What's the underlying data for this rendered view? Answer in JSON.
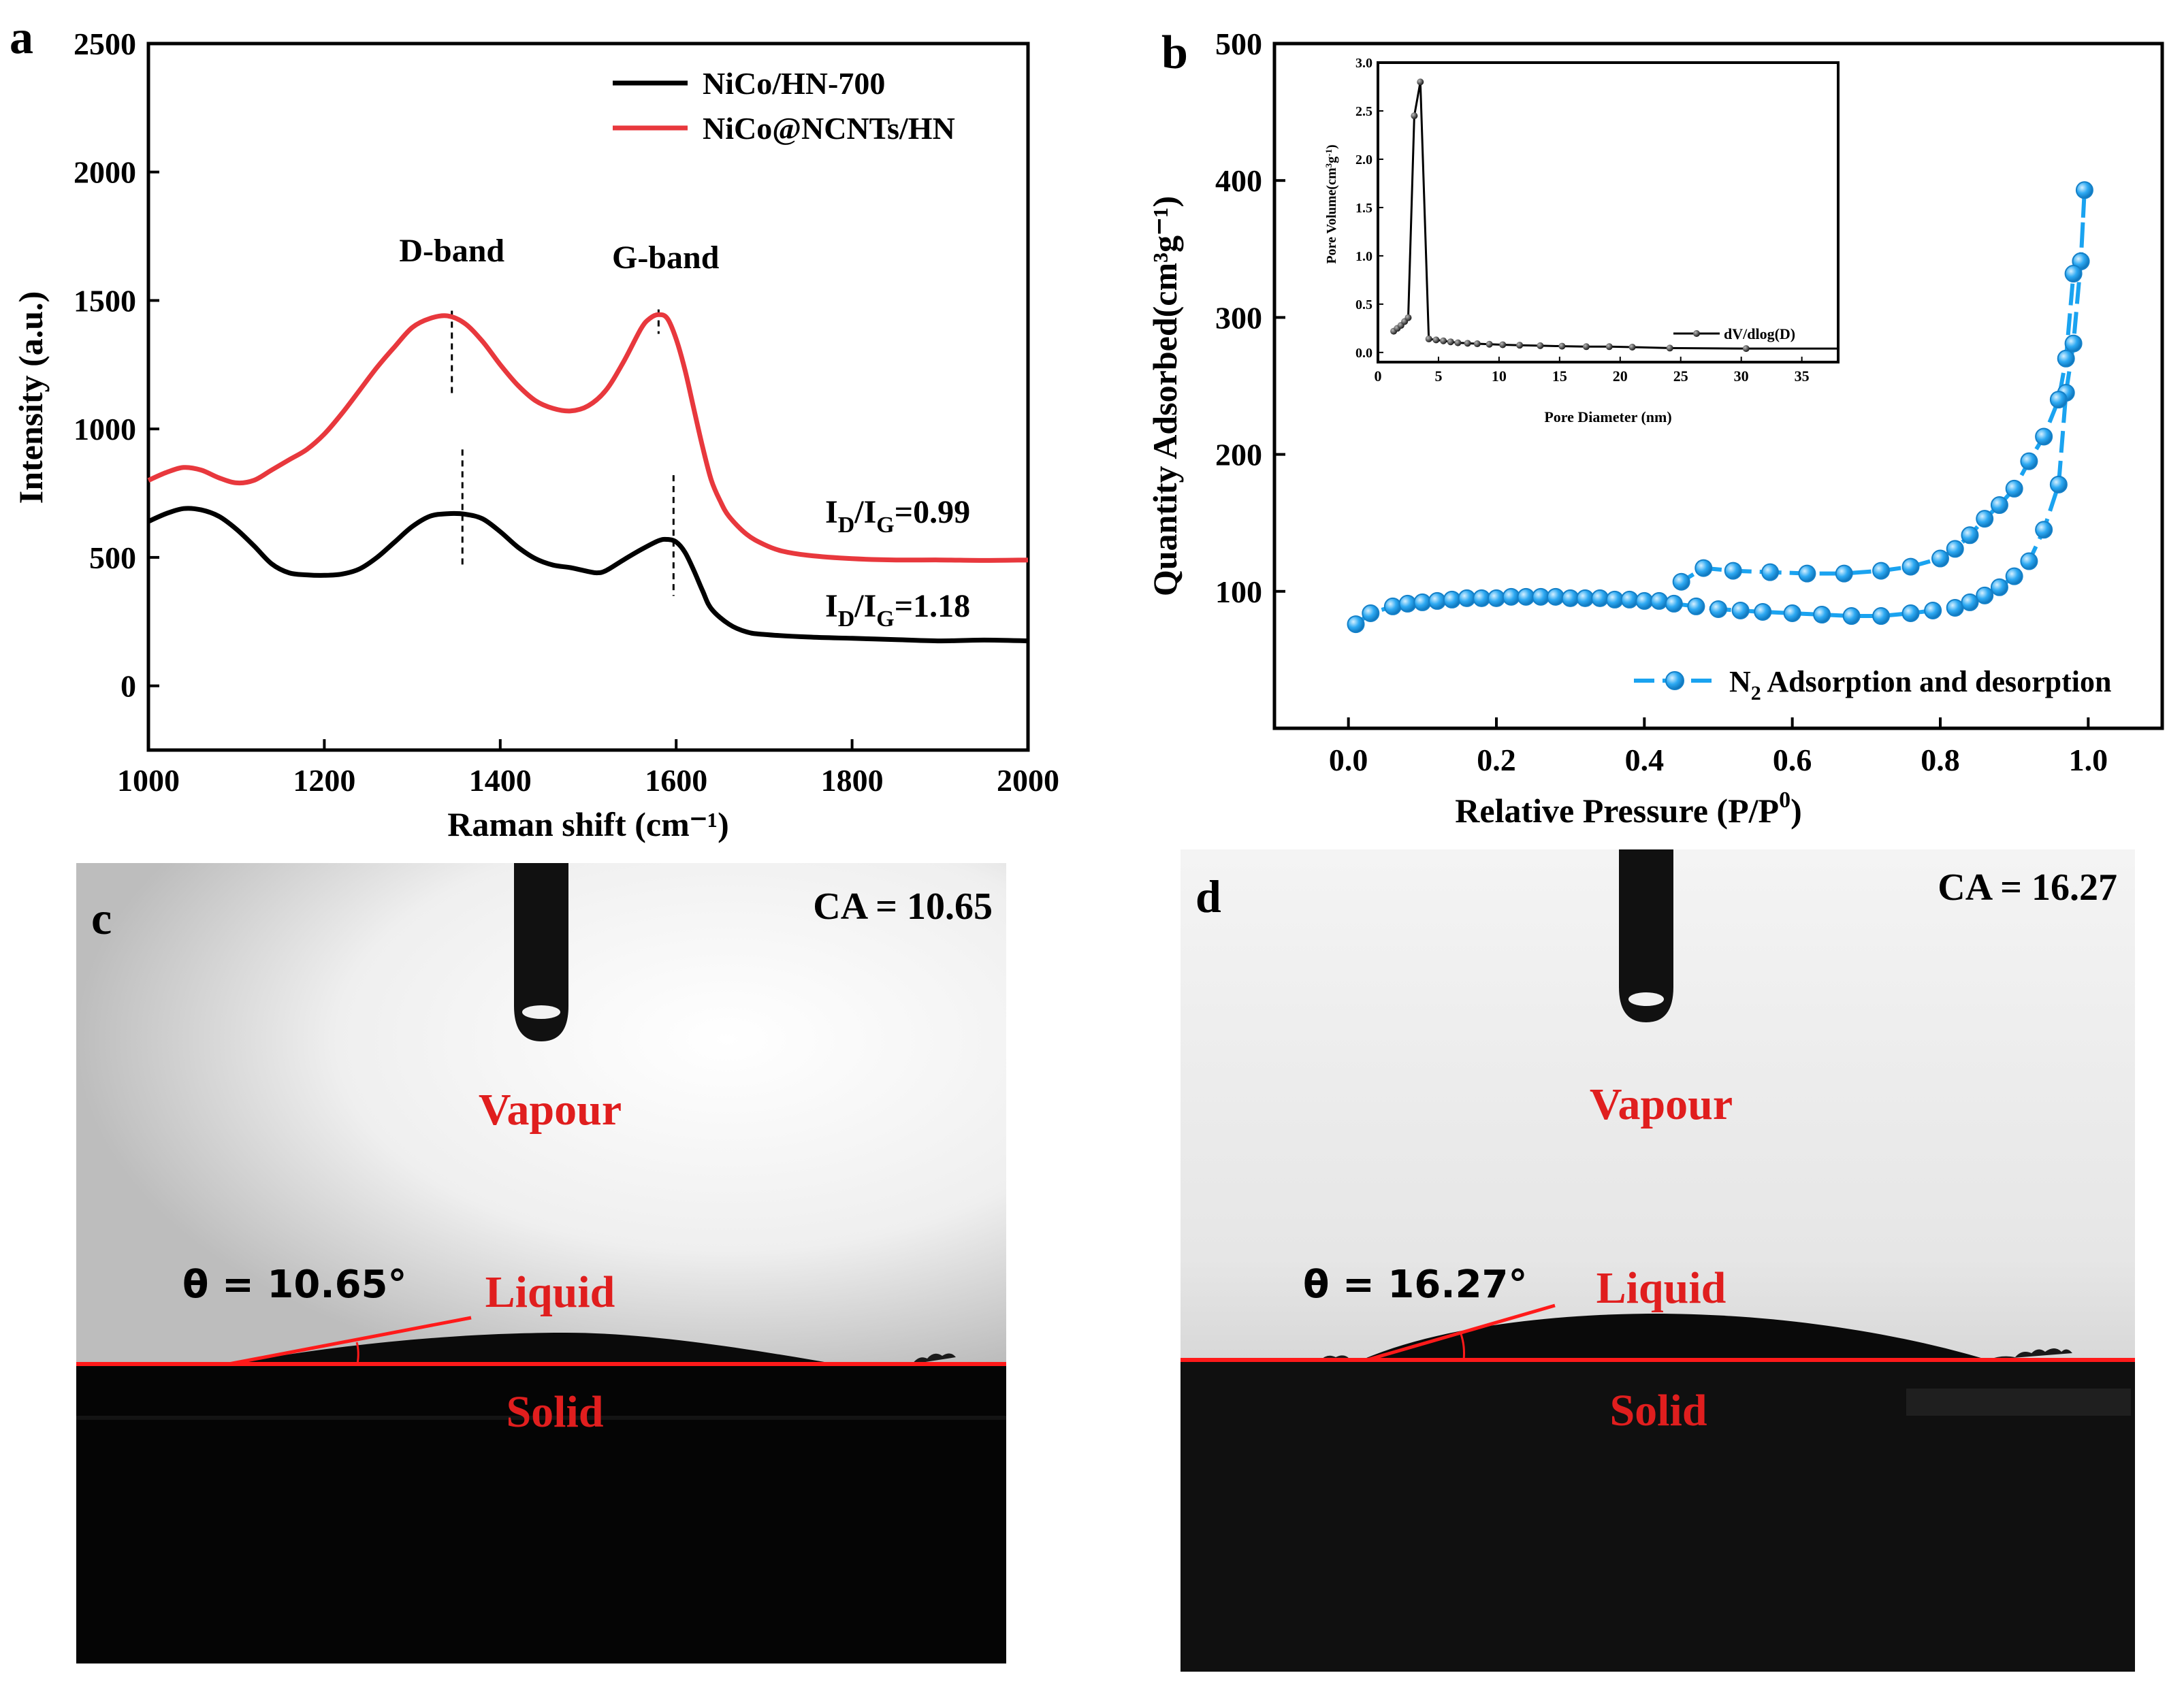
{
  "panels": {
    "a": {
      "label": "a"
    },
    "b": {
      "label": "b"
    },
    "c": {
      "label": "c",
      "ca_text": "CA = 10.65",
      "theta_text": "θ = 10.65°",
      "vapour": "Vapour",
      "liquid": "Liquid",
      "solid": "Solid"
    },
    "d": {
      "label": "d",
      "ca_text": "CA = 16.27",
      "theta_text": "θ = 16.27°",
      "vapour": "Vapour",
      "liquid": "Liquid",
      "solid": "Solid"
    }
  },
  "colors": {
    "black": "#000000",
    "red": "#e8383d",
    "blue": "#1aa3f0",
    "label_red": "#e01e1e"
  },
  "chart_data": [
    {
      "id": "raman",
      "type": "line",
      "xlabel": "Raman shift (cm⁻¹)",
      "ylabel": "Intensity (a.u.)",
      "xlim": [
        1000,
        2000
      ],
      "ylim": [
        -250,
        2500
      ],
      "xticks": [
        1000,
        1200,
        1400,
        1600,
        1800,
        2000
      ],
      "yticks": [
        0,
        500,
        1000,
        1500,
        2000,
        2500
      ],
      "legend_position": "top-right",
      "annotations": [
        {
          "text": "D-band",
          "x": 1345
        },
        {
          "text": "G-band",
          "x": 1580
        }
      ],
      "ratio_labels": [
        {
          "sub": "D",
          "sub2": "G",
          "value": "=0.99",
          "series": "NiCo@NCNTs/HN"
        },
        {
          "sub": "D",
          "sub2": "G",
          "value": "=1.18",
          "series": "NiCo/HN-700"
        }
      ],
      "band_markers": [
        {
          "x": 1345,
          "from": 1130,
          "to": 1460,
          "series": "NiCo@NCNTs/HN"
        },
        {
          "x": 1580,
          "from": 1370,
          "to": 1465,
          "series": "NiCo@NCNTs/HN"
        },
        {
          "x": 1357,
          "from": 460,
          "to": 920,
          "series": "NiCo/HN-700"
        },
        {
          "x": 1597,
          "from": 350,
          "to": 820,
          "series": "NiCo/HN-700"
        }
      ],
      "series": [
        {
          "name": "NiCo/HN-700",
          "color": "#000000",
          "x": [
            1000,
            1020,
            1040,
            1060,
            1080,
            1100,
            1120,
            1140,
            1160,
            1180,
            1200,
            1220,
            1240,
            1260,
            1280,
            1300,
            1320,
            1340,
            1360,
            1380,
            1400,
            1420,
            1440,
            1460,
            1480,
            1500,
            1510,
            1520,
            1540,
            1560,
            1580,
            1590,
            1600,
            1610,
            1620,
            1630,
            1640,
            1660,
            1680,
            1700,
            1750,
            1800,
            1850,
            1900,
            1950,
            2000
          ],
          "y": [
            640,
            670,
            690,
            685,
            660,
            610,
            545,
            475,
            440,
            432,
            430,
            435,
            455,
            500,
            560,
            620,
            660,
            670,
            668,
            650,
            600,
            540,
            495,
            470,
            460,
            445,
            440,
            448,
            490,
            530,
            565,
            570,
            560,
            520,
            450,
            370,
            300,
            240,
            210,
            200,
            190,
            185,
            180,
            175,
            178,
            175
          ]
        },
        {
          "name": "NiCo@NCNTs/HN",
          "color": "#e8383d",
          "x": [
            1000,
            1020,
            1040,
            1060,
            1080,
            1100,
            1120,
            1140,
            1160,
            1180,
            1200,
            1220,
            1240,
            1260,
            1280,
            1300,
            1320,
            1340,
            1360,
            1380,
            1400,
            1420,
            1440,
            1460,
            1480,
            1500,
            1520,
            1540,
            1560,
            1570,
            1580,
            1590,
            1600,
            1610,
            1620,
            1630,
            1640,
            1650,
            1660,
            1680,
            1700,
            1720,
            1750,
            1800,
            1850,
            1900,
            1950,
            2000
          ],
          "y": [
            800,
            830,
            850,
            840,
            810,
            790,
            800,
            840,
            880,
            920,
            980,
            1060,
            1150,
            1240,
            1320,
            1395,
            1430,
            1440,
            1410,
            1340,
            1250,
            1170,
            1110,
            1080,
            1070,
            1090,
            1150,
            1260,
            1390,
            1430,
            1445,
            1430,
            1350,
            1230,
            1080,
            930,
            800,
            720,
            660,
            590,
            550,
            525,
            508,
            495,
            490,
            490,
            488,
            490
          ]
        }
      ]
    },
    {
      "id": "bet",
      "type": "line",
      "xlabel": "Relative Pressure (P/P0)",
      "xlabel_main": "Relative Pressure (P/P",
      "xlabel_sup": "0",
      "xlabel_end": ")",
      "ylabel": "Quantity Adsorbed(cm³g⁻¹)",
      "xlim": [
        -0.1,
        1.1
      ],
      "ylim": [
        0,
        500
      ],
      "xticks": [
        0.0,
        0.2,
        0.4,
        0.6,
        0.8,
        1.0
      ],
      "yticks": [
        100,
        200,
        300,
        400,
        500
      ],
      "legend_position": "bottom-right",
      "series": [
        {
          "name": "N2 Adsorption and desorption",
          "legend_main": "N",
          "legend_sub": "2",
          "legend_rest": " Adsorption and desorption",
          "color": "#1aa3f0",
          "x": [
            0.01,
            0.03,
            0.06,
            0.08,
            0.1,
            0.12,
            0.14,
            0.16,
            0.18,
            0.2,
            0.22,
            0.24,
            0.26,
            0.28,
            0.3,
            0.32,
            0.34,
            0.36,
            0.38,
            0.4,
            0.42,
            0.44,
            0.47,
            0.5,
            0.53,
            0.56,
            0.6,
            0.64,
            0.68,
            0.72,
            0.76,
            0.79,
            0.82,
            0.84,
            0.86,
            0.88,
            0.9,
            0.92,
            0.94,
            0.96,
            0.97,
            0.98,
            0.99,
            0.995,
            0.99,
            0.98,
            0.97,
            0.96,
            0.94,
            0.92,
            0.9,
            0.88,
            0.86,
            0.84,
            0.82,
            0.8,
            0.76,
            0.72,
            0.67,
            0.62,
            0.57,
            0.52,
            0.48,
            0.45
          ],
          "y": [
            76,
            84,
            89,
            91,
            92,
            93,
            94,
            95,
            95,
            95,
            96,
            96,
            96,
            96,
            95,
            95,
            95,
            94,
            94,
            93,
            93,
            91,
            89,
            87,
            86,
            85,
            84,
            83,
            82,
            82,
            84,
            86,
            88,
            92,
            97,
            103,
            111,
            122,
            145,
            178,
            245,
            281,
            341,
            393,
            341,
            332,
            270,
            240,
            213,
            195,
            175,
            163,
            153,
            141,
            131,
            124,
            118,
            115,
            113,
            113,
            114,
            115,
            117,
            107
          ]
        }
      ],
      "inset": {
        "type": "line",
        "xlabel": "Pore  Diameter (nm)",
        "ylabel": "Pore Volume(cm3g-1)",
        "ylabel_main": "Pore Volume(cm",
        "ylabel_sup1": "3",
        "ylabel_mid": "g",
        "ylabel_sup2": "-1",
        "ylabel_end": ")",
        "xlim": [
          0,
          38
        ],
        "ylim": [
          -0.1,
          3.0
        ],
        "xticks": [
          0,
          5,
          10,
          15,
          20,
          25,
          30,
          35
        ],
        "yticks": [
          0.0,
          0.5,
          1.0,
          1.5,
          2.0,
          2.5,
          3.0
        ],
        "legend_position": "bottom-right",
        "series": [
          {
            "name": "dV/dlog(D)",
            "color": "#000000",
            "x": [
              1.3,
              1.6,
              1.9,
              2.2,
              2.5,
              3.0,
              3.5,
              4.2,
              4.8,
              5.4,
              6.0,
              6.6,
              7.4,
              8.2,
              9.2,
              10.3,
              11.7,
              13.4,
              15.2,
              17.2,
              19.1,
              21.0,
              24.1,
              30.4,
              38.0
            ],
            "y": [
              0.22,
              0.25,
              0.28,
              0.32,
              0.36,
              2.45,
              2.8,
              0.14,
              0.13,
              0.12,
              0.11,
              0.1,
              0.095,
              0.09,
              0.085,
              0.08,
              0.075,
              0.07,
              0.065,
              0.06,
              0.06,
              0.055,
              0.045,
              0.04,
              0.04
            ]
          }
        ]
      }
    }
  ]
}
